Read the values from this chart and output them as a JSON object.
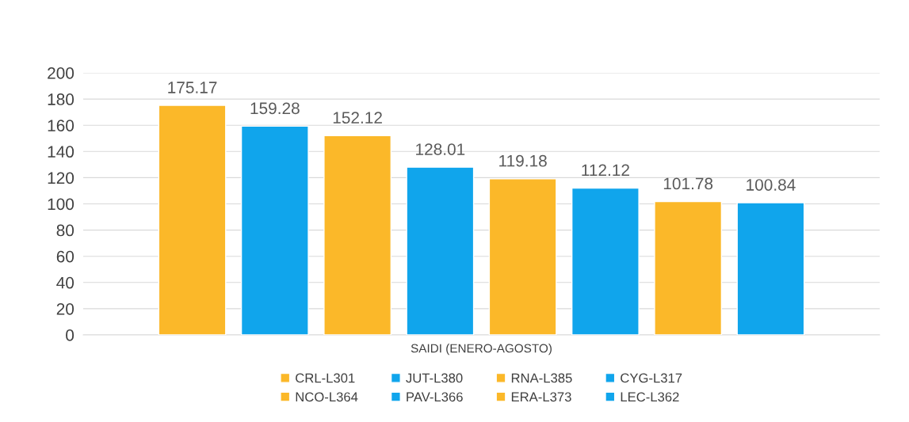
{
  "chart_data": {
    "type": "bar",
    "categories": [
      "SAIDI (ENERO-AGOSTO)"
    ],
    "series": [
      {
        "name": "CRL-L301",
        "color": "#fbb829",
        "values": [
          175.17
        ]
      },
      {
        "name": "JUT-L380",
        "color": "#10a5ec",
        "values": [
          159.28
        ]
      },
      {
        "name": "RNA-L385",
        "color": "#fbb829",
        "values": [
          152.12
        ]
      },
      {
        "name": "CYG-L317",
        "color": "#10a5ec",
        "values": [
          128.01
        ]
      },
      {
        "name": "NCO-L364",
        "color": "#fbb829",
        "values": [
          119.18
        ]
      },
      {
        "name": "PAV-L366",
        "color": "#10a5ec",
        "values": [
          112.12
        ]
      },
      {
        "name": "ERA-L373",
        "color": "#fbb829",
        "values": [
          101.78
        ]
      },
      {
        "name": "LEC-L362",
        "color": "#10a5ec",
        "values": [
          100.84
        ]
      }
    ],
    "ylim": [
      0,
      200
    ],
    "yticks": [
      0,
      20,
      40,
      60,
      80,
      100,
      120,
      140,
      160,
      180,
      200
    ],
    "grid": "y",
    "legend": "bottom",
    "data_labels": true
  }
}
